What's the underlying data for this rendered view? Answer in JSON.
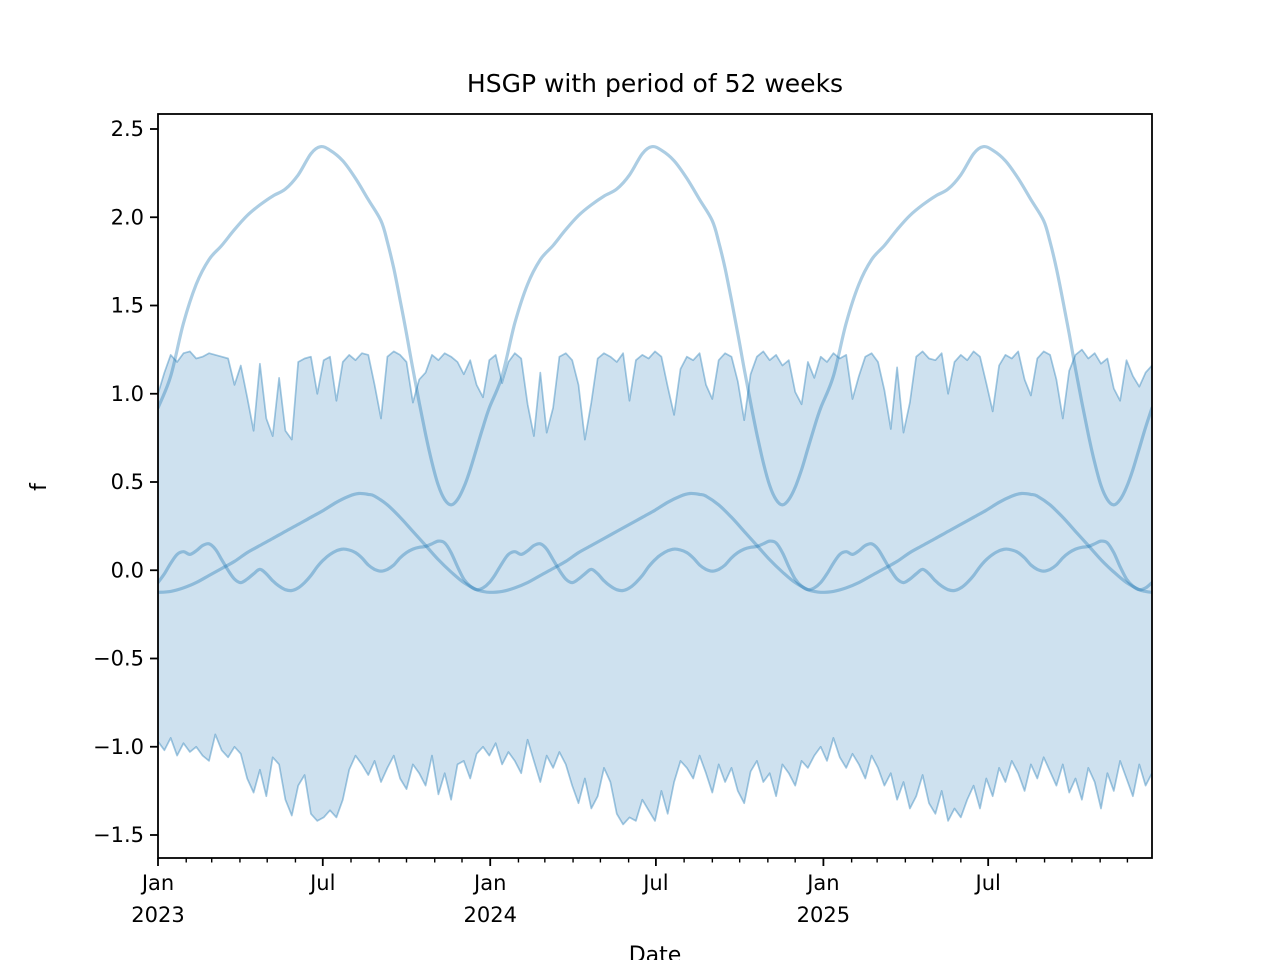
{
  "figure": {
    "title": "HSGP with period of 52 weeks",
    "xlabel": "Date",
    "ylabel": "f"
  },
  "chart_data": {
    "type": "line",
    "title": "HSGP with period of 52 weeks",
    "xlabel": "Date",
    "ylabel": "f",
    "x_unit": "weeks since 2023-01-01, weekly sampling",
    "xlim": [
      0,
      156
    ],
    "ylim": [
      -1.63,
      2.58
    ],
    "grid": false,
    "legend": "none",
    "colors": {
      "base_line": "#1f77b4",
      "curve_alpha": 0.37,
      "band_fill_alpha": 0.22,
      "band_edge_alpha": 0.4,
      "axis": "#000000",
      "background": "#ffffff"
    },
    "y_ticks": [
      {
        "v": 2.5,
        "label": "2.5"
      },
      {
        "v": 2.0,
        "label": "2.0"
      },
      {
        "v": 1.5,
        "label": "1.5"
      },
      {
        "v": 1.0,
        "label": "1.0"
      },
      {
        "v": 0.5,
        "label": "0.5"
      },
      {
        "v": 0.0,
        "label": "0.0"
      },
      {
        "v": -0.5,
        "label": "−0.5"
      },
      {
        "v": -1.0,
        "label": "−1.0"
      },
      {
        "v": -1.5,
        "label": "−1.5"
      }
    ],
    "x_major_ticks": [
      {
        "week": 0,
        "label": "Jan",
        "sublabel": "2023"
      },
      {
        "week": 25.86,
        "label": "Jul",
        "sublabel": ""
      },
      {
        "week": 52.14,
        "label": "Jan",
        "sublabel": "2024"
      },
      {
        "week": 78.14,
        "label": "Jul",
        "sublabel": ""
      },
      {
        "week": 104.43,
        "label": "Jan",
        "sublabel": "2025"
      },
      {
        "week": 130.29,
        "label": "Jul",
        "sublabel": ""
      }
    ],
    "x_minor_ticks_weeks": [
      4.43,
      8.43,
      12.86,
      17.14,
      21.57,
      30.29,
      34.71,
      39.0,
      43.43,
      47.71,
      56.57,
      60.71,
      65.14,
      69.43,
      73.86,
      82.57,
      87.0,
      91.29,
      95.71,
      100.0,
      108.86,
      112.86,
      117.29,
      121.57,
      126.0,
      134.71,
      139.14,
      143.43,
      147.86,
      152.14
    ],
    "band": {
      "name": "hdi-uncertainty-band",
      "week_step": 1,
      "start_week": 0,
      "upper": [
        1.0,
        1.12,
        1.22,
        1.18,
        1.23,
        1.24,
        1.2,
        1.21,
        1.23,
        1.22,
        1.21,
        1.2,
        1.05,
        1.16,
        0.98,
        0.79,
        1.17,
        0.86,
        0.76,
        1.09,
        0.79,
        0.74,
        1.18,
        1.2,
        1.21,
        1.0,
        1.19,
        1.21,
        0.96,
        1.18,
        1.22,
        1.19,
        1.23,
        1.22,
        1.05,
        0.86,
        1.21,
        1.24,
        1.22,
        1.18,
        0.95,
        1.08,
        1.12,
        1.22,
        1.19,
        1.23,
        1.21,
        1.18,
        1.11,
        1.19,
        1.05,
        0.98,
        1.19,
        1.22,
        1.06,
        1.18,
        1.23,
        1.2,
        0.94,
        0.76,
        1.12,
        0.78,
        0.92,
        1.21,
        1.23,
        1.19,
        1.05,
        0.74,
        0.95,
        1.2,
        1.23,
        1.21,
        1.18,
        1.23,
        0.96,
        1.19,
        1.22,
        1.2,
        1.24,
        1.21,
        1.04,
        0.88,
        1.14,
        1.21,
        1.19,
        1.23,
        1.05,
        0.97,
        1.19,
        1.23,
        1.21,
        1.07,
        0.85,
        1.11,
        1.21,
        1.24,
        1.19,
        1.22,
        1.16,
        1.19,
        1.01,
        0.94,
        1.18,
        1.09,
        1.21,
        1.18,
        1.23,
        1.2,
        1.22,
        0.97,
        1.1,
        1.21,
        1.23,
        1.18,
        1.02,
        0.8,
        1.15,
        0.78,
        0.95,
        1.21,
        1.24,
        1.2,
        1.19,
        1.23,
        1.0,
        1.18,
        1.22,
        1.19,
        1.24,
        1.21,
        1.06,
        0.9,
        1.16,
        1.22,
        1.2,
        1.24,
        1.08,
        0.99,
        1.2,
        1.24,
        1.22,
        1.08,
        0.86,
        1.13,
        1.22,
        1.25,
        1.2,
        1.23,
        1.17,
        1.2,
        1.03,
        0.96,
        1.19,
        1.1,
        1.04,
        1.12,
        1.16
      ],
      "lower": [
        -0.97,
        -1.02,
        -0.95,
        -1.05,
        -0.98,
        -1.03,
        -1.0,
        -1.05,
        -1.08,
        -0.93,
        -1.02,
        -1.06,
        -1.0,
        -1.04,
        -1.18,
        -1.26,
        -1.13,
        -1.28,
        -1.06,
        -1.1,
        -1.3,
        -1.39,
        -1.22,
        -1.16,
        -1.38,
        -1.42,
        -1.4,
        -1.36,
        -1.4,
        -1.3,
        -1.13,
        -1.05,
        -1.1,
        -1.16,
        -1.08,
        -1.2,
        -1.12,
        -1.05,
        -1.18,
        -1.24,
        -1.1,
        -1.15,
        -1.22,
        -1.05,
        -1.27,
        -1.15,
        -1.3,
        -1.1,
        -1.08,
        -1.18,
        -1.04,
        -1.0,
        -1.05,
        -0.98,
        -1.1,
        -1.03,
        -1.08,
        -1.15,
        -0.96,
        -1.08,
        -1.2,
        -1.05,
        -1.12,
        -1.03,
        -1.1,
        -1.22,
        -1.32,
        -1.18,
        -1.35,
        -1.28,
        -1.12,
        -1.2,
        -1.38,
        -1.44,
        -1.4,
        -1.42,
        -1.3,
        -1.36,
        -1.42,
        -1.25,
        -1.38,
        -1.2,
        -1.08,
        -1.12,
        -1.18,
        -1.05,
        -1.15,
        -1.26,
        -1.1,
        -1.2,
        -1.12,
        -1.25,
        -1.32,
        -1.14,
        -1.08,
        -1.2,
        -1.15,
        -1.28,
        -1.1,
        -1.15,
        -1.22,
        -1.08,
        -1.12,
        -1.05,
        -1.0,
        -1.08,
        -0.95,
        -1.06,
        -1.12,
        -1.04,
        -1.1,
        -1.18,
        -1.05,
        -1.12,
        -1.22,
        -1.15,
        -1.3,
        -1.2,
        -1.35,
        -1.28,
        -1.16,
        -1.32,
        -1.38,
        -1.25,
        -1.42,
        -1.35,
        -1.4,
        -1.3,
        -1.22,
        -1.35,
        -1.18,
        -1.28,
        -1.12,
        -1.2,
        -1.08,
        -1.15,
        -1.25,
        -1.1,
        -1.18,
        -1.06,
        -1.14,
        -1.22,
        -1.1,
        -1.26,
        -1.18,
        -1.3,
        -1.12,
        -1.2,
        -1.35,
        -1.15,
        -1.25,
        -1.08,
        -1.18,
        -1.28,
        -1.1,
        -1.22,
        -1.15
      ]
    },
    "series": [
      {
        "name": "gp-sample-large-seasonal",
        "period_weeks": 52,
        "periods": 3,
        "period_anchors": [
          [
            0,
            0.92
          ],
          [
            2,
            1.1
          ],
          [
            4,
            1.4
          ],
          [
            6,
            1.62
          ],
          [
            8,
            1.76
          ],
          [
            10,
            1.84
          ],
          [
            12,
            1.93
          ],
          [
            14,
            2.01
          ],
          [
            16,
            2.07
          ],
          [
            18,
            2.12
          ],
          [
            20,
            2.16
          ],
          [
            22,
            2.24
          ],
          [
            24,
            2.36
          ],
          [
            25.5,
            2.4
          ],
          [
            27,
            2.38
          ],
          [
            29,
            2.32
          ],
          [
            31,
            2.22
          ],
          [
            33,
            2.1
          ],
          [
            35,
            1.98
          ],
          [
            36,
            1.86
          ],
          [
            37,
            1.71
          ],
          [
            38,
            1.53
          ],
          [
            39,
            1.34
          ],
          [
            40,
            1.14
          ],
          [
            41,
            0.95
          ],
          [
            42,
            0.77
          ],
          [
            43,
            0.61
          ],
          [
            44,
            0.48
          ],
          [
            45,
            0.4
          ],
          [
            46,
            0.37
          ],
          [
            47,
            0.4
          ],
          [
            48,
            0.47
          ],
          [
            49,
            0.57
          ],
          [
            50,
            0.69
          ],
          [
            51,
            0.81
          ],
          [
            52,
            0.92
          ]
        ]
      },
      {
        "name": "gp-sample-medium-seasonal",
        "period_weeks": 52,
        "periods": 3,
        "period_anchors": [
          [
            0,
            -0.125
          ],
          [
            2,
            -0.12
          ],
          [
            4,
            -0.1
          ],
          [
            6,
            -0.07
          ],
          [
            8,
            -0.03
          ],
          [
            10,
            0.01
          ],
          [
            12,
            0.05
          ],
          [
            14,
            0.1
          ],
          [
            16,
            0.14
          ],
          [
            18,
            0.18
          ],
          [
            20,
            0.22
          ],
          [
            22,
            0.26
          ],
          [
            24,
            0.3
          ],
          [
            26,
            0.34
          ],
          [
            28,
            0.385
          ],
          [
            30,
            0.42
          ],
          [
            31.5,
            0.435
          ],
          [
            33,
            0.43
          ],
          [
            34,
            0.42
          ],
          [
            36,
            0.37
          ],
          [
            38,
            0.3
          ],
          [
            40,
            0.22
          ],
          [
            42,
            0.14
          ],
          [
            44,
            0.06
          ],
          [
            46,
            -0.01
          ],
          [
            48,
            -0.07
          ],
          [
            50,
            -0.11
          ],
          [
            51,
            -0.12
          ],
          [
            52,
            -0.125
          ]
        ]
      },
      {
        "name": "gp-sample-small-wiggly",
        "period_weeks": 52,
        "periods": 3,
        "period_anchors": [
          [
            0,
            -0.07
          ],
          [
            1,
            -0.02
          ],
          [
            2,
            0.04
          ],
          [
            3,
            0.09
          ],
          [
            4,
            0.105
          ],
          [
            5,
            0.09
          ],
          [
            6,
            0.11
          ],
          [
            7,
            0.14
          ],
          [
            8,
            0.15
          ],
          [
            9,
            0.12
          ],
          [
            10,
            0.06
          ],
          [
            11,
            0.0
          ],
          [
            12,
            -0.05
          ],
          [
            13,
            -0.07
          ],
          [
            14,
            -0.05
          ],
          [
            15,
            -0.02
          ],
          [
            16,
            0.005
          ],
          [
            17,
            -0.02
          ],
          [
            18,
            -0.06
          ],
          [
            19,
            -0.09
          ],
          [
            20,
            -0.11
          ],
          [
            21,
            -0.115
          ],
          [
            22,
            -0.1
          ],
          [
            23,
            -0.07
          ],
          [
            24,
            -0.03
          ],
          [
            25,
            0.02
          ],
          [
            26,
            0.06
          ],
          [
            27,
            0.09
          ],
          [
            28,
            0.11
          ],
          [
            29,
            0.12
          ],
          [
            30,
            0.115
          ],
          [
            31,
            0.1
          ],
          [
            32,
            0.07
          ],
          [
            33,
            0.03
          ],
          [
            34,
            0.005
          ],
          [
            35,
            -0.005
          ],
          [
            36,
            0.005
          ],
          [
            37,
            0.03
          ],
          [
            38,
            0.07
          ],
          [
            39,
            0.1
          ],
          [
            40,
            0.12
          ],
          [
            41,
            0.13
          ],
          [
            42,
            0.135
          ],
          [
            43,
            0.15
          ],
          [
            44,
            0.165
          ],
          [
            45,
            0.155
          ],
          [
            46,
            0.1
          ],
          [
            47,
            0.02
          ],
          [
            48,
            -0.05
          ],
          [
            49,
            -0.09
          ],
          [
            50,
            -0.11
          ],
          [
            51,
            -0.1
          ],
          [
            52,
            -0.07
          ]
        ]
      }
    ]
  }
}
